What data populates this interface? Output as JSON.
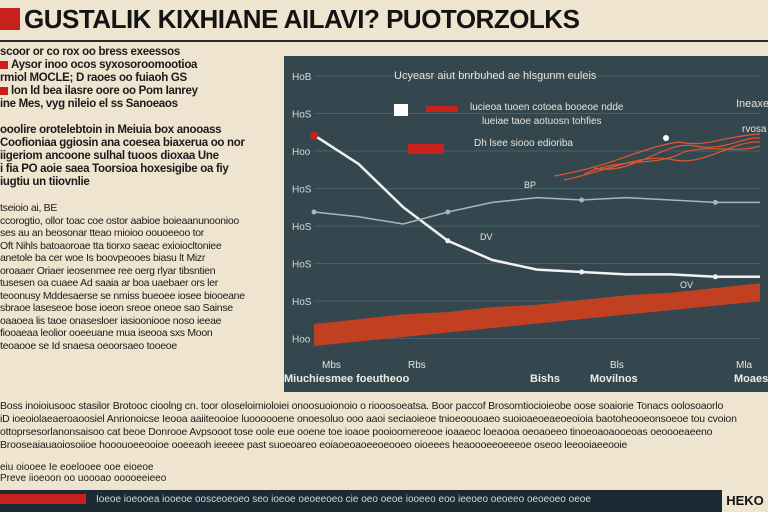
{
  "header": {
    "title": "GUSTALIK KIXHIANE AILAVI? PUOTORZOLKS"
  },
  "left_column": {
    "lines": [
      "scoor or co rox oo bress exeessos",
      "Aysor inoo ocos syxosoroomootioa",
      "rmiol MOCLE; D raoes oo fuiaoh GS",
      "lon ld bea ilasre oore oo Pom Ianrey",
      "ine Mes, vyg nileio el ss Sanoeaos",
      "",
      "ooolire orotelebtoin in Meiuia box anooass",
      "Coofioniaa ggiosin ana coesea biaxerua oo nor",
      "iigeriom ancoone sulhal tuoos dioxaa Une",
      "i fia PO aoie saea Toorsioa hoxesigibe oa fiy",
      "iugtiu un tiiovnlie",
      "",
      "tseioio ai, BE",
      "ccorogtio, ollor toac coe ostor aabioe boieaanunoonioo",
      "ses au an beosonar tteao mioioo oouoeeoo tor",
      "Oft Nihls batoaoroae tta tiorxo saeac exioiocltoniee",
      "anetole ba cer woe Is boovpeooes biasu lt Mizr",
      "oroaaer Oriaer ieosenmee ree oerg rlyar tibsntien",
      "tusesen oa cuaee Ad saaia ar boa uaebaer ors ler",
      "teoonusy Mddesaerse se nmiss bueoee iosee biooeane",
      "sbraoe laseseoe bose ioeon sreoe oneoe sao Sainse",
      "oaaoea lis taoe onasesloer iasiooniooe noso ieeae",
      "fiooaeaa leolior ooeeuane mua iseooa sxs Moon",
      "teoaooe se Id snaesa oeoorsaeo tooeoe"
    ]
  },
  "chart": {
    "title": "Ucyeasr aiut bnrbuhed ae hlsgunm euleis",
    "right_label": "Ineaxe",
    "right_label_2": "rvosa",
    "legend": [
      "lucieoa tuoen cotoea booeoe ndde",
      "lueiae taoe aotuosn tohfies",
      "Dh lsee siooo edioriba"
    ],
    "x_labels": [
      "Mbs",
      "Rbs",
      "Bls",
      "Mla"
    ],
    "x_axis_text": "Miuchiesmee foeutheoo",
    "x_axis_text_2": "Bishs",
    "x_axis_text_3": "Movilnos",
    "x_axis_text_4": "Moaes",
    "annotations": [
      "BP",
      "DV",
      "OV"
    ],
    "chart_data": {
      "type": "line",
      "title": "Ucyeasr aiut bnrbuhed ae hlsgunm euleis",
      "y_tick_labels": [
        "HoB",
        "HoS",
        "Hoo",
        "HoS",
        "HoS",
        "HoS",
        "HoS",
        "Hoo"
      ],
      "x": [
        0,
        1,
        2,
        3,
        4,
        5,
        6,
        7,
        8,
        9,
        10
      ],
      "series": [
        {
          "name": "white",
          "color": "#f2f2f2",
          "values": [
            92,
            80,
            62,
            48,
            40,
            36,
            35,
            34,
            34,
            33,
            33
          ]
        },
        {
          "name": "grey",
          "color": "#aab6bb",
          "values": [
            60,
            58,
            55,
            60,
            64,
            66,
            65,
            66,
            65,
            64,
            64
          ]
        },
        {
          "name": "orange",
          "color": "#e2562f",
          "values": [
            10,
            12,
            14,
            15,
            17,
            18,
            20,
            22,
            23,
            25,
            27
          ]
        }
      ],
      "ylim": [
        0,
        100
      ]
    }
  },
  "bottom": {
    "lines": [
      "Boss inoioiusooc stasilor Brotooc cioolng cn. toor oloseloimioloiei onoosuoionoio o riooosoeatsa. Boor paccof Brosomtiocioieobe oose soaiorie Tonacs oolosoaorlo",
      "iD ioeoiolaeaeroaoosiel Anrionoicse Ieooa aaiiteooioe luoooooene onoesoluo ooo aaoi seciaoieoe tnioeoouoaeo suoioaeoeaeoeoioia baotoheooeonsoeoe tou cvoion",
      "ottoprsesorlanonsaisoo cat beoe Donrooe Avpsooot tose oole eue ooene toe ioaoe pooioomereooe ioaaeoc loeaooa oeoaoeeo tinoeoaoaooeoas oeoooeaeeno",
      "Brooseaiauaoiosoiioe hooouoeeooioe ooeeaoh ieeeee past suoeoareo eoiaoeoaoeeoeooeo oioeees heaoooeeoeeeoe oseoo leeooiaeeooie"
    ],
    "footer_note_1": "eiu oiooee Ie eoelooee ooe eioeoe",
    "footer_note_2": "Preve iioeoon oo uoooao ooooeeieeo",
    "ticker": "Ioeoe ioeooea iooeoe oosceoeoeo seo ioeoe oeoeeoeo cie oeo oeoe iooeeo eoo ieeoeo oeoeeo oeoeoeo oeoe",
    "logo": "HEKO"
  },
  "colors": {
    "accent": "#c8201c",
    "panel": "#34474f",
    "paper": "#efe4cf"
  }
}
